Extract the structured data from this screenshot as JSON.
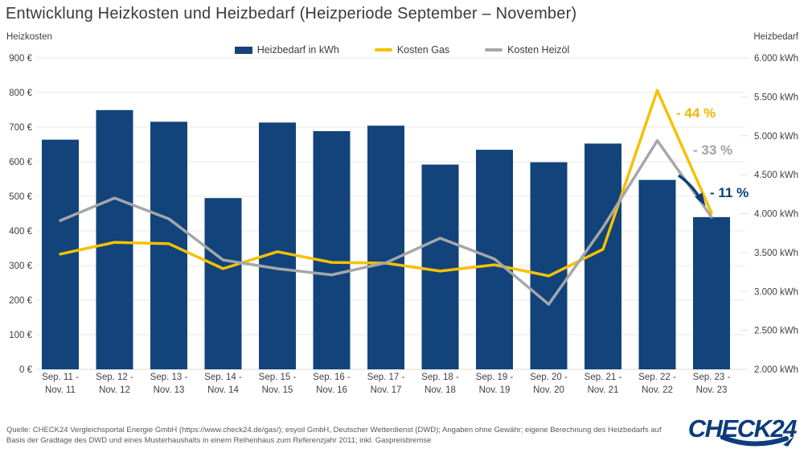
{
  "title": "Entwicklung Heizkosten und Heizbedarf (Heizperiode September – November)",
  "left_axis_caption": "Heizkosten",
  "right_axis_caption": "Heizbedarf",
  "legend": {
    "items": [
      {
        "label": "Heizbedarf in kWh",
        "color": "#12437B",
        "marker": "bar-swatch"
      },
      {
        "label": "Kosten Gas",
        "color": "#F5C100",
        "marker": "line-swatch"
      },
      {
        "label": "Kosten Heizöl",
        "color": "#A5A7A9",
        "marker": "line-swatch"
      }
    ]
  },
  "chart_data": {
    "type": "bar",
    "subtype": "combo-bar-line",
    "categories": [
      "Sep. 11 - Nov. 11",
      "Sep. 12 - Nov. 12",
      "Sep. 13 - Nov. 13",
      "Sep. 14 - Nov. 14",
      "Sep. 15 - Nov. 15",
      "Sep. 16 - Nov. 16",
      "Sep. 17 - Nov. 17",
      "Sep. 18 - Nov. 18",
      "Sep. 19 - Nov. 19",
      "Sep. 20 - Nov. 20",
      "Sep. 21 - Nov. 21",
      "Sep. 22 - Nov. 22",
      "Sep. 23 - Nov. 23"
    ],
    "series": [
      {
        "name": "Heizbedarf in kWh",
        "type": "bar",
        "axis": "right",
        "unit": "kWh",
        "color": "#12437B",
        "values": [
          4950,
          5330,
          5180,
          4200,
          5170,
          5060,
          5130,
          4630,
          4820,
          4660,
          4900,
          4433,
          3955
        ]
      },
      {
        "name": "Kosten Gas",
        "type": "line",
        "axis": "left",
        "unit": "€",
        "color": "#F5C100",
        "values": [
          333,
          367,
          363,
          291,
          340,
          309,
          307,
          284,
          302,
          270,
          347,
          806,
          452
        ]
      },
      {
        "name": "Kosten Heizöl",
        "type": "line",
        "axis": "left",
        "unit": "€",
        "color": "#A5A7A9",
        "values": [
          430,
          495,
          435,
          316,
          291,
          273,
          308,
          379,
          319,
          188,
          410,
          661,
          440
        ]
      }
    ],
    "left_axis": {
      "label": "Heizkosten",
      "min": 0,
      "max": 900,
      "step": 100,
      "suffix": " €"
    },
    "right_axis": {
      "label": "Heizbedarf",
      "min": 2000,
      "max": 6000,
      "step": 500,
      "suffix": " kWh"
    },
    "grid": "horizontal",
    "legend_position": "top-center",
    "annotations": [
      {
        "text": "- 44 %",
        "color": "#EFB700",
        "x": 841,
        "y": 146,
        "refers_to": "Kosten Gas"
      },
      {
        "text": "- 33 %",
        "color": "#9FA2A5",
        "x": 862,
        "y": 192,
        "refers_to": "Kosten Heizöl"
      },
      {
        "text": "- 11 %",
        "color": "#0E3D7A",
        "x": 883,
        "y": 245,
        "refers_to": "Heizbedarf in kWh"
      }
    ],
    "arrow": {
      "from": [
        844,
        218
      ],
      "to": [
        871,
        247
      ],
      "color": "#0E3D7A"
    }
  },
  "source_text": "Quelle: CHECK24 Vergleichsportal Energie GmbH (https://www.check24.de/gas/); esyoil GmbH, Deutscher Wetterdienst (DWD); Angaben ohne Gewähr; eigene Berechnung des Heizbedarfs auf Basis der Gradtage des DWD und eines Musterhaushalts in einem Reihenhaus zum Referenzjahr 2011; inkl. Gaspreisbremse",
  "logo": {
    "text": "CHECK24",
    "color": "#0D3C7E"
  }
}
